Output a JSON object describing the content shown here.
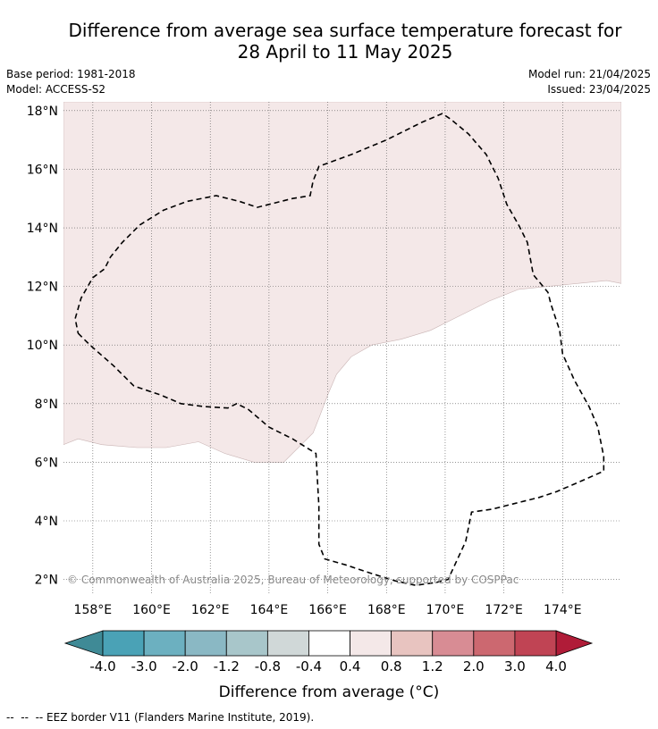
{
  "title_line1": "Difference from average sea surface temperature forecast for",
  "title_line2": "28 April to 11 May 2025",
  "meta_left": [
    "Base period: 1981-2018",
    "Model: ACCESS-S2"
  ],
  "meta_right": [
    "Model run: 21/04/2025",
    "Issued: 23/04/2025"
  ],
  "copyright": "© Commonwealth of Australia 2025, Bureau of Meteorology, supported by COSPPac",
  "footer": "--  --  -- EEZ border V11 (Flanders Marine Institute, 2019).",
  "chart_data": {
    "type": "heatmap",
    "title": "Difference from average sea surface temperature forecast for 28 April to 11 May 2025",
    "xlim": [
      157,
      176
    ],
    "ylim": [
      1.5,
      18.3
    ],
    "x_ticks": [
      158,
      160,
      162,
      164,
      166,
      168,
      170,
      172,
      174
    ],
    "x_tick_labels": [
      "158°E",
      "160°E",
      "162°E",
      "164°E",
      "166°E",
      "168°E",
      "170°E",
      "172°E",
      "174°E"
    ],
    "y_ticks": [
      2,
      4,
      6,
      8,
      10,
      12,
      14,
      16,
      18
    ],
    "y_tick_labels": [
      "2°N",
      "4°N",
      "6°N",
      "8°N",
      "10°N",
      "12°N",
      "14°N",
      "16°N",
      "18°N"
    ],
    "grid": true,
    "colorbar": {
      "label": "Difference from average (°C)",
      "boundaries": [
        -4.0,
        -3.0,
        -2.0,
        -1.2,
        -0.8,
        -0.4,
        0.4,
        0.8,
        1.2,
        2.0,
        3.0,
        4.0
      ],
      "boundary_labels": [
        "-4.0",
        "-3.0",
        "-2.0",
        "-1.2",
        "-0.8",
        "-0.4",
        "0.4",
        "0.8",
        "1.2",
        "2.0",
        "3.0",
        "4.0"
      ],
      "colors": [
        "#4aa2b6",
        "#6cb0c0",
        "#8ab8c4",
        "#a8c6ca",
        "#d0d8d8",
        "#ffffff",
        "#f4e8e8",
        "#e8c4c0",
        "#d88c94",
        "#cc6870",
        "#c04454"
      ],
      "under_color": "#3f8a96",
      "over_color": "#b01c38",
      "extend": "both"
    },
    "anomaly_regions": [
      {
        "category": "0.4 to 0.8",
        "color": "#f4e8e8",
        "boundary": [
          [
            157.0,
            18.3
          ],
          [
            176.0,
            18.3
          ],
          [
            176.0,
            12.1
          ],
          [
            175.5,
            12.2
          ],
          [
            174.5,
            12.1
          ],
          [
            173.5,
            12.0
          ],
          [
            172.5,
            11.9
          ],
          [
            171.5,
            11.5
          ],
          [
            170.5,
            11.0
          ],
          [
            169.5,
            10.5
          ],
          [
            168.5,
            10.2
          ],
          [
            167.5,
            10.0
          ],
          [
            166.8,
            9.6
          ],
          [
            166.3,
            9.0
          ],
          [
            166.0,
            8.3
          ],
          [
            165.7,
            7.5
          ],
          [
            165.5,
            7.0
          ],
          [
            164.5,
            6.0
          ],
          [
            163.5,
            6.0
          ],
          [
            162.5,
            6.3
          ],
          [
            161.6,
            6.7
          ],
          [
            160.5,
            6.5
          ],
          [
            159.5,
            6.5
          ],
          [
            158.3,
            6.6
          ],
          [
            157.5,
            6.8
          ],
          [
            157.0,
            6.6
          ]
        ]
      }
    ],
    "eez_border": [
      [
        157.5,
        10.4
      ],
      [
        157.9,
        10.0
      ],
      [
        158.7,
        9.3
      ],
      [
        159.4,
        8.6
      ],
      [
        160.3,
        8.3
      ],
      [
        161.0,
        8.0
      ],
      [
        161.8,
        7.9
      ],
      [
        162.6,
        7.85
      ],
      [
        162.9,
        8.0
      ],
      [
        163.3,
        7.8
      ],
      [
        164.0,
        7.2
      ],
      [
        164.8,
        6.8
      ],
      [
        165.6,
        6.3
      ],
      [
        165.7,
        4.5
      ],
      [
        165.7,
        3.2
      ],
      [
        165.9,
        2.7
      ],
      [
        166.6,
        2.5
      ],
      [
        167.5,
        2.2
      ],
      [
        168.3,
        1.95
      ],
      [
        169.0,
        1.8
      ],
      [
        169.7,
        1.9
      ],
      [
        170.1,
        2.0
      ],
      [
        170.7,
        3.3
      ],
      [
        170.9,
        4.3
      ],
      [
        171.6,
        4.4
      ],
      [
        172.4,
        4.6
      ],
      [
        173.2,
        4.8
      ],
      [
        173.8,
        5.0
      ],
      [
        174.5,
        5.3
      ],
      [
        175.4,
        5.7
      ],
      [
        175.4,
        6.2
      ],
      [
        175.2,
        7.2
      ],
      [
        174.9,
        7.9
      ],
      [
        174.4,
        8.8
      ],
      [
        174.0,
        9.7
      ],
      [
        173.9,
        10.5
      ],
      [
        173.6,
        11.4
      ],
      [
        173.5,
        11.8
      ],
      [
        173.0,
        12.4
      ],
      [
        172.8,
        13.5
      ],
      [
        172.5,
        14.1
      ],
      [
        172.1,
        14.8
      ],
      [
        171.8,
        15.7
      ],
      [
        171.4,
        16.5
      ],
      [
        170.8,
        17.2
      ],
      [
        170.2,
        17.7
      ],
      [
        169.9,
        17.9
      ],
      [
        169.2,
        17.6
      ],
      [
        168.0,
        17.0
      ],
      [
        166.8,
        16.5
      ],
      [
        165.7,
        16.1
      ],
      [
        165.5,
        15.6
      ],
      [
        165.4,
        15.1
      ],
      [
        164.8,
        15.0
      ],
      [
        163.6,
        14.7
      ],
      [
        163.0,
        14.9
      ],
      [
        162.2,
        15.1
      ],
      [
        161.2,
        14.9
      ],
      [
        160.4,
        14.6
      ],
      [
        159.6,
        14.1
      ],
      [
        159.0,
        13.5
      ],
      [
        158.6,
        13.0
      ],
      [
        158.4,
        12.6
      ],
      [
        158.0,
        12.3
      ],
      [
        157.6,
        11.6
      ],
      [
        157.4,
        10.9
      ],
      [
        157.5,
        10.4
      ]
    ]
  }
}
